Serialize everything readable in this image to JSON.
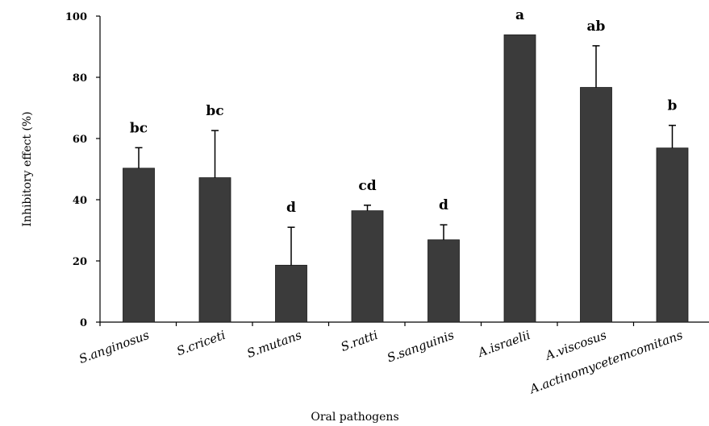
{
  "chart_data": {
    "type": "bar",
    "title": "",
    "xlabel": "Oral pathogens",
    "ylabel": "Inhibitory effect (%)",
    "ylim": [
      0,
      100
    ],
    "yticks": [
      "0",
      "20",
      "40",
      "60",
      "80",
      "100"
    ],
    "categories": [
      "S.anginosus",
      "S.criceti",
      "S.mutans",
      "S.ratti",
      "S.sanguinis",
      "A.israelii",
      "A.viscosus",
      "A.actinomycetemcomitans"
    ],
    "values": [
      50.3,
      47.2,
      18.6,
      36.4,
      26.9,
      93.9,
      76.7,
      56.9
    ],
    "errors": [
      6.7,
      15.4,
      12.4,
      1.8,
      4.9,
      0,
      13.6,
      7.4
    ],
    "significance": [
      "bc",
      "bc",
      "d",
      "cd",
      "d",
      "a",
      "ab",
      "b"
    ],
    "bar_color": "#3b3b3b",
    "grid": false,
    "legend": "none"
  }
}
